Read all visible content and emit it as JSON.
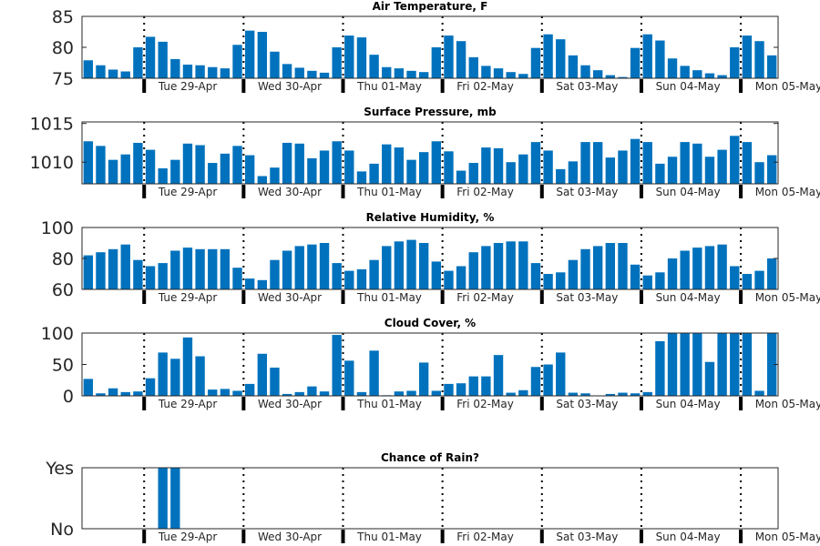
{
  "chart_data": [
    {
      "type": "bar",
      "title": "Air Temperature, F",
      "ylim": [
        75,
        85
      ],
      "yticks": [
        {
          "value": 75,
          "label": "75"
        },
        {
          "value": 80,
          "label": "80"
        },
        {
          "value": 85,
          "label": "85"
        }
      ],
      "values": [
        77.9,
        77.1,
        76.4,
        76.1,
        80.0,
        81.7,
        80.9,
        78.1,
        77.2,
        77.1,
        76.8,
        76.6,
        80.4,
        82.7,
        82.5,
        79.3,
        77.3,
        76.7,
        76.2,
        75.9,
        80.0,
        81.9,
        81.6,
        78.8,
        76.8,
        76.6,
        76.2,
        76.0,
        80.0,
        81.9,
        81.0,
        78.4,
        77.0,
        76.6,
        76.0,
        75.7,
        79.9,
        82.1,
        81.3,
        78.7,
        77.1,
        76.3,
        75.5,
        75.2,
        79.9,
        82.1,
        81.1,
        78.2,
        77.0,
        76.3,
        75.8,
        75.5,
        80.0,
        81.9,
        81.0,
        78.7
      ]
    },
    {
      "type": "bar",
      "title": "Surface Pressure, mb",
      "ylim": [
        1007.2,
        1015.2
      ],
      "yticks": [
        {
          "value": 1010,
          "label": "1010"
        },
        {
          "value": 1015,
          "label": "1015"
        }
      ],
      "values": [
        1012.7,
        1012.1,
        1010.3,
        1011.0,
        1012.5,
        1011.6,
        1009.2,
        1010.3,
        1012.4,
        1012.2,
        1009.9,
        1011.1,
        1012.1,
        1010.9,
        1008.2,
        1009.3,
        1012.5,
        1012.4,
        1010.5,
        1011.5,
        1012.7,
        1011.5,
        1008.8,
        1009.8,
        1012.3,
        1011.9,
        1010.3,
        1011.3,
        1012.7,
        1011.4,
        1008.9,
        1009.9,
        1011.9,
        1011.8,
        1010.0,
        1011.0,
        1012.6,
        1011.5,
        1009.1,
        1010.1,
        1012.6,
        1012.6,
        1010.6,
        1011.5,
        1013.0,
        1012.6,
        1009.8,
        1010.7,
        1012.6,
        1012.4,
        1010.7,
        1011.6,
        1013.4,
        1012.6,
        1010.0,
        1010.9
      ]
    },
    {
      "type": "bar",
      "title": "Relative Humidity, %",
      "ylim": [
        60,
        100
      ],
      "yticks": [
        {
          "value": 60,
          "label": "60"
        },
        {
          "value": 80,
          "label": "80"
        },
        {
          "value": 100,
          "label": "100"
        }
      ],
      "values": [
        82,
        84,
        86,
        89,
        79,
        75,
        77,
        85,
        87,
        86,
        86,
        86,
        74,
        67,
        66,
        79,
        85,
        88,
        89,
        90,
        77,
        72,
        73,
        79,
        88,
        91,
        92,
        90,
        78,
        72,
        75,
        84,
        88,
        90,
        91,
        91,
        77,
        70,
        71,
        79,
        86,
        88,
        90,
        90,
        76,
        69,
        71,
        80,
        85,
        87,
        88,
        89,
        75,
        70,
        72,
        80
      ]
    },
    {
      "type": "bar",
      "title": "Cloud Cover, %",
      "ylim": [
        0,
        100
      ],
      "yticks": [
        {
          "value": 0,
          "label": "0"
        },
        {
          "value": 50,
          "label": "50"
        },
        {
          "value": 100,
          "label": "100"
        }
      ],
      "values": [
        27,
        4,
        12,
        6,
        7,
        28,
        69,
        59,
        93,
        63,
        10,
        11,
        8,
        19,
        67,
        45,
        3,
        6,
        15,
        7,
        97,
        56,
        6,
        72,
        1,
        7,
        8,
        53,
        8,
        19,
        20,
        31,
        31,
        65,
        5,
        9,
        46,
        50,
        69,
        5,
        4,
        0,
        3,
        5,
        4,
        6,
        87,
        100,
        100,
        100,
        54,
        100,
        100,
        100,
        8,
        100
      ]
    },
    {
      "type": "bar",
      "title": "Chance of Rain?",
      "ylim": [
        0,
        1
      ],
      "yticks": [
        {
          "value": 0,
          "label": "No"
        },
        {
          "value": 1,
          "label": "Yes"
        }
      ],
      "values": [
        0,
        0,
        0,
        0,
        0,
        0,
        1,
        1,
        0,
        0,
        0,
        0,
        0,
        0,
        0,
        0,
        0,
        0,
        0,
        0,
        0,
        0,
        0,
        0,
        0,
        0,
        0,
        0,
        0,
        0,
        0,
        0,
        0,
        0,
        0,
        0,
        0,
        0,
        0,
        0,
        0,
        0,
        0,
        0,
        0,
        0,
        0,
        0,
        0,
        0,
        0,
        0,
        0,
        0,
        0,
        0
      ]
    }
  ],
  "day_labels": [
    "Tue 29-Apr",
    "Wed 30-Apr",
    "Thu 01-May",
    "Fri 02-May",
    "Sat 03-May",
    "Sun 04-May",
    "Mon 05-May"
  ],
  "colors": {
    "bar": "#0072BD",
    "axis": "#262626",
    "text": "#000000"
  }
}
